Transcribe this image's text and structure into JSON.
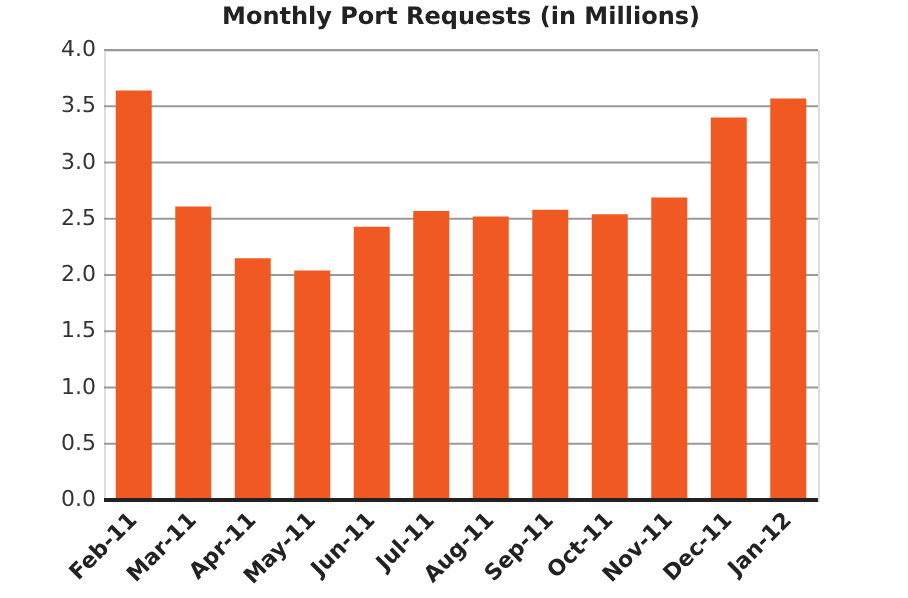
{
  "chart_data": {
    "type": "bar",
    "title": "Monthly Port Requests (in Millions)",
    "categories": [
      "Feb-11",
      "Mar-11",
      "Apr-11",
      "May-11",
      "Jun-11",
      "Jul-11",
      "Aug-11",
      "Sep-11",
      "Oct-11",
      "Nov-11",
      "Dec-11",
      "Jan-12"
    ],
    "values": [
      3.64,
      2.61,
      2.15,
      2.04,
      2.43,
      2.57,
      2.52,
      2.58,
      2.54,
      2.69,
      3.4,
      3.57
    ],
    "color": "#f05a22",
    "ylim": [
      0,
      4
    ],
    "yticks": [
      {
        "value": 0,
        "label": "0.0"
      },
      {
        "value": 0.5,
        "label": "0.5"
      },
      {
        "value": 1,
        "label": "1.0"
      },
      {
        "value": 1.5,
        "label": "1.5"
      },
      {
        "value": 2,
        "label": "2.0"
      },
      {
        "value": 2.5,
        "label": "2.5"
      },
      {
        "value": 3,
        "label": "3.0"
      },
      {
        "value": 3.5,
        "label": "3.5"
      },
      {
        "value": 4,
        "label": "4.0"
      }
    ],
    "grid": "y"
  }
}
